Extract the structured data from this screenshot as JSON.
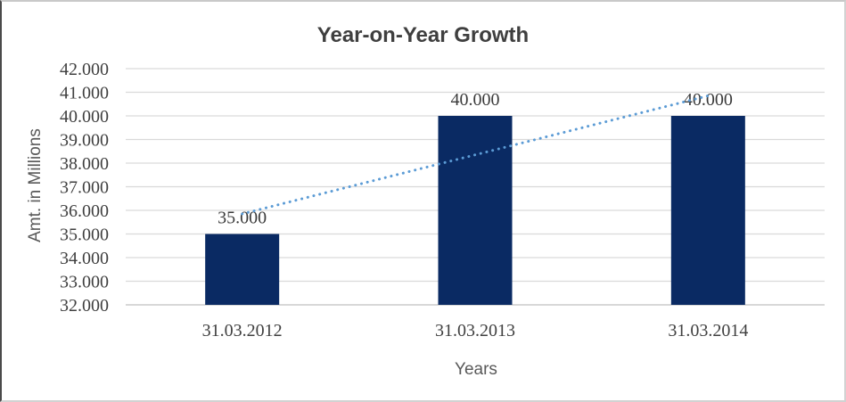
{
  "chart_data": {
    "type": "bar",
    "title": "Year-on-Year Growth",
    "xlabel": "Years",
    "ylabel": "Amt. in Millions",
    "categories": [
      "31.03.2012",
      "31.03.2013",
      "31.03.2014"
    ],
    "series": [
      {
        "name": "Amt. in Millions",
        "values": [
          35000,
          40000,
          40000
        ]
      }
    ],
    "data_labels": [
      "35.000",
      "40.000",
      "40.000"
    ],
    "ylim": [
      32000,
      42000
    ],
    "ytick_step": 1000,
    "yticks": [
      {
        "value": 32000,
        "label": "32.000"
      },
      {
        "value": 33000,
        "label": "33.000"
      },
      {
        "value": 34000,
        "label": "34.000"
      },
      {
        "value": 35000,
        "label": "35.000"
      },
      {
        "value": 36000,
        "label": "36.000"
      },
      {
        "value": 37000,
        "label": "37.000"
      },
      {
        "value": 38000,
        "label": "38.000"
      },
      {
        "value": 39000,
        "label": "39.000"
      },
      {
        "value": 40000,
        "label": "40.000"
      },
      {
        "value": 41000,
        "label": "41.000"
      },
      {
        "value": 42000,
        "label": "42.000"
      }
    ],
    "grid": true,
    "legend": "none",
    "trendline": {
      "type": "linear",
      "style": "dotted",
      "start_value": 35850,
      "end_value": 40850
    },
    "colors": {
      "bar": "#0a2a63",
      "trendline": "#5b9bd5",
      "gridline": "#d9d9d9",
      "axis_line": "#c0c0c0",
      "title_text": "#3f3f3f",
      "axis_title_text": "#595959",
      "tick_text": "#404040"
    }
  }
}
